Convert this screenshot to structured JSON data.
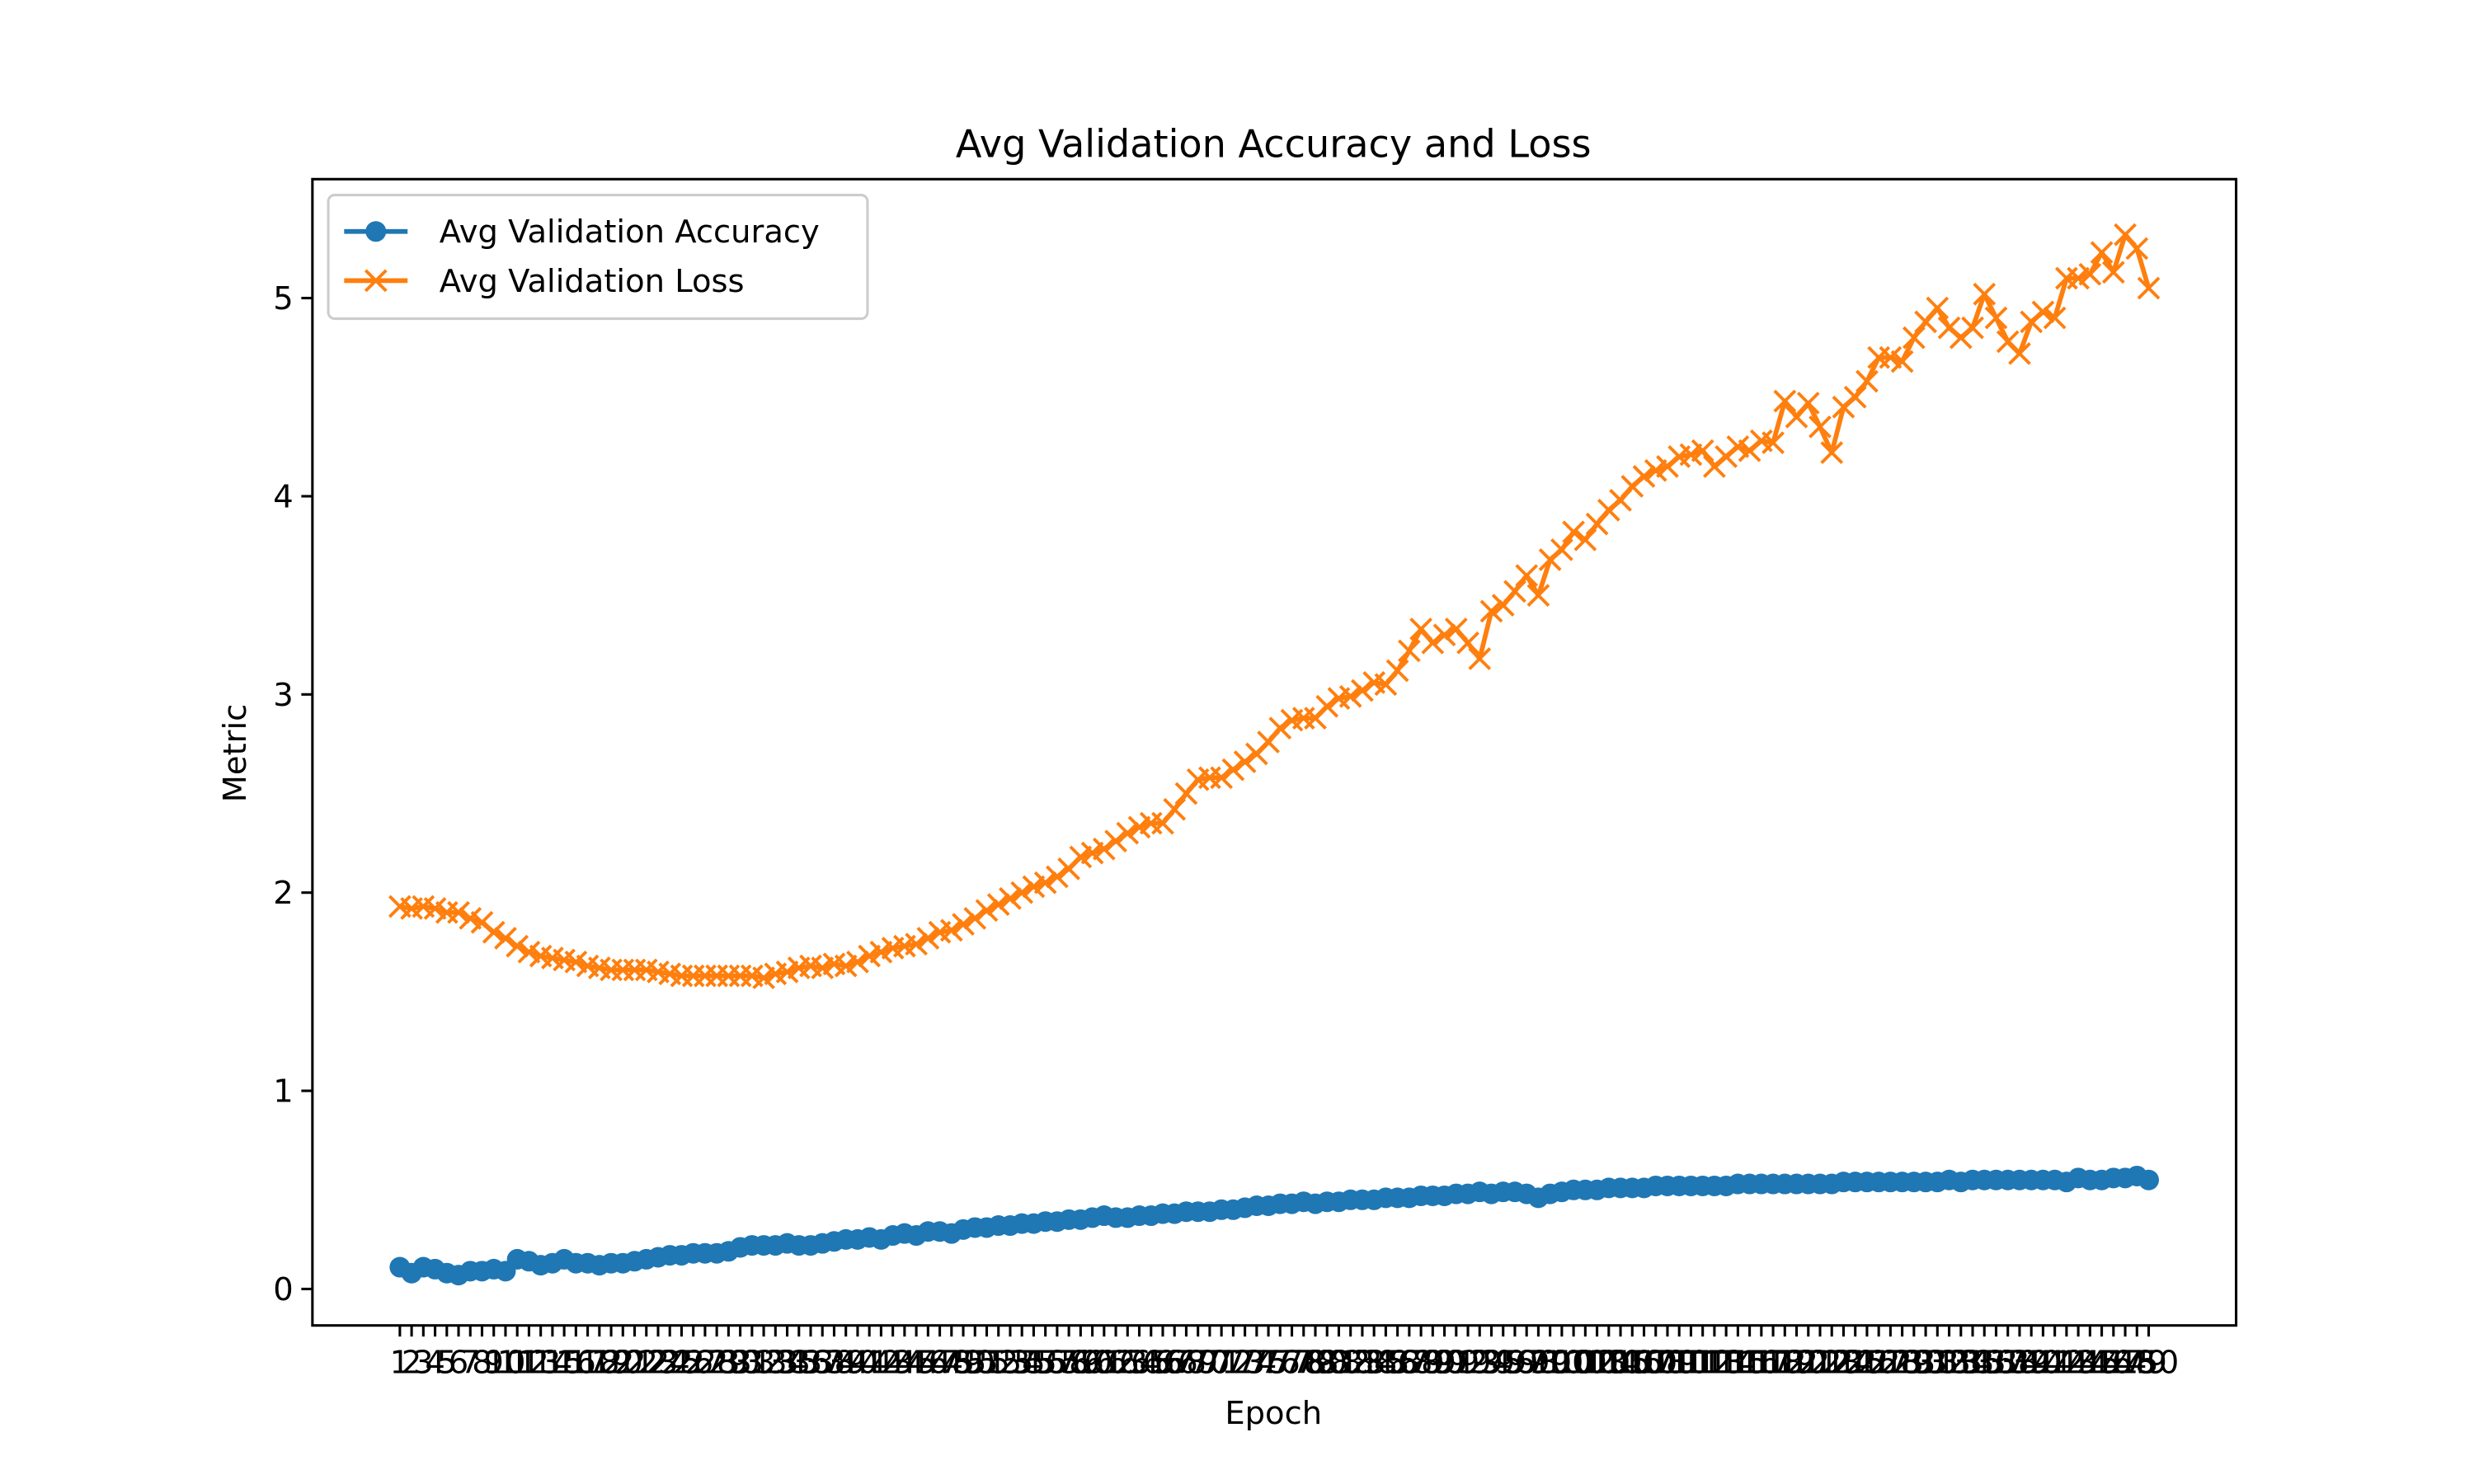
{
  "chart_data": {
    "type": "line",
    "title": "Avg Validation Accuracy and Loss",
    "xlabel": "Epoch",
    "ylabel": "Metric",
    "x": [
      1,
      2,
      3,
      4,
      5,
      6,
      7,
      8,
      9,
      10,
      11,
      12,
      13,
      14,
      15,
      16,
      17,
      18,
      19,
      20,
      21,
      22,
      23,
      24,
      25,
      26,
      27,
      28,
      29,
      30,
      31,
      32,
      33,
      34,
      35,
      36,
      37,
      38,
      39,
      40,
      41,
      42,
      43,
      44,
      45,
      46,
      47,
      48,
      49,
      50,
      51,
      52,
      53,
      54,
      55,
      56,
      57,
      58,
      59,
      60,
      61,
      62,
      63,
      64,
      65,
      66,
      67,
      68,
      69,
      70,
      71,
      72,
      73,
      74,
      75,
      76,
      77,
      78,
      79,
      80,
      81,
      82,
      83,
      84,
      85,
      86,
      87,
      88,
      89,
      90,
      91,
      92,
      93,
      94,
      95,
      96,
      97,
      98,
      99,
      100,
      101,
      102,
      103,
      104,
      105,
      106,
      107,
      108,
      109,
      110,
      111,
      112,
      113,
      114,
      115,
      116,
      117,
      118,
      119,
      120,
      121,
      122,
      123,
      124,
      125,
      126,
      127,
      128,
      129,
      130,
      131,
      132,
      133,
      134,
      135,
      136,
      137,
      138,
      139,
      140,
      141,
      142,
      143,
      144,
      145,
      146,
      147,
      148,
      149,
      150
    ],
    "series": [
      {
        "name": "Avg Validation Accuracy",
        "color": "#1f77b4",
        "marker": "o",
        "values": [
          0.11,
          0.08,
          0.11,
          0.1,
          0.08,
          0.07,
          0.09,
          0.09,
          0.1,
          0.09,
          0.15,
          0.14,
          0.12,
          0.13,
          0.15,
          0.13,
          0.13,
          0.12,
          0.13,
          0.13,
          0.14,
          0.15,
          0.16,
          0.17,
          0.17,
          0.18,
          0.18,
          0.18,
          0.19,
          0.21,
          0.22,
          0.22,
          0.22,
          0.23,
          0.22,
          0.22,
          0.23,
          0.24,
          0.25,
          0.25,
          0.26,
          0.25,
          0.27,
          0.28,
          0.27,
          0.29,
          0.29,
          0.28,
          0.3,
          0.31,
          0.31,
          0.32,
          0.32,
          0.33,
          0.33,
          0.34,
          0.34,
          0.35,
          0.35,
          0.36,
          0.37,
          0.36,
          0.36,
          0.37,
          0.37,
          0.38,
          0.38,
          0.39,
          0.39,
          0.39,
          0.4,
          0.4,
          0.41,
          0.42,
          0.42,
          0.43,
          0.43,
          0.44,
          0.43,
          0.44,
          0.44,
          0.45,
          0.45,
          0.45,
          0.46,
          0.46,
          0.46,
          0.47,
          0.47,
          0.47,
          0.48,
          0.48,
          0.49,
          0.48,
          0.49,
          0.49,
          0.48,
          0.46,
          0.48,
          0.49,
          0.5,
          0.5,
          0.5,
          0.51,
          0.51,
          0.51,
          0.51,
          0.52,
          0.52,
          0.52,
          0.52,
          0.52,
          0.52,
          0.52,
          0.53,
          0.53,
          0.53,
          0.53,
          0.53,
          0.53,
          0.53,
          0.53,
          0.53,
          0.54,
          0.54,
          0.54,
          0.54,
          0.54,
          0.54,
          0.54,
          0.54,
          0.54,
          0.55,
          0.54,
          0.55,
          0.55,
          0.55,
          0.55,
          0.55,
          0.55,
          0.55,
          0.55,
          0.54,
          0.56,
          0.55,
          0.55,
          0.56,
          0.56,
          0.57,
          0.55
        ]
      },
      {
        "name": "Avg Validation Loss",
        "color": "#ff7f0e",
        "marker": "x",
        "values": [
          1.93,
          1.92,
          1.93,
          1.92,
          1.9,
          1.9,
          1.87,
          1.85,
          1.8,
          1.77,
          1.73,
          1.7,
          1.68,
          1.67,
          1.66,
          1.65,
          1.63,
          1.62,
          1.61,
          1.61,
          1.61,
          1.61,
          1.6,
          1.59,
          1.58,
          1.58,
          1.58,
          1.58,
          1.58,
          1.58,
          1.58,
          1.57,
          1.59,
          1.6,
          1.62,
          1.63,
          1.62,
          1.64,
          1.63,
          1.65,
          1.68,
          1.7,
          1.72,
          1.73,
          1.74,
          1.77,
          1.8,
          1.81,
          1.84,
          1.87,
          1.91,
          1.94,
          1.97,
          2.0,
          2.03,
          2.05,
          2.08,
          2.12,
          2.18,
          2.2,
          2.22,
          2.26,
          2.3,
          2.33,
          2.35,
          2.35,
          2.42,
          2.5,
          2.57,
          2.58,
          2.58,
          2.62,
          2.66,
          2.7,
          2.76,
          2.83,
          2.87,
          2.88,
          2.88,
          2.94,
          2.98,
          2.99,
          3.02,
          3.06,
          3.05,
          3.12,
          3.22,
          3.33,
          3.26,
          3.3,
          3.33,
          3.26,
          3.18,
          3.42,
          3.45,
          3.52,
          3.6,
          3.5,
          3.68,
          3.73,
          3.82,
          3.78,
          3.86,
          3.93,
          3.98,
          4.05,
          4.1,
          4.13,
          4.15,
          4.2,
          4.21,
          4.23,
          4.15,
          4.2,
          4.25,
          4.23,
          4.28,
          4.27,
          4.48,
          4.4,
          4.47,
          4.35,
          4.22,
          4.45,
          4.5,
          4.58,
          4.7,
          4.7,
          4.68,
          4.8,
          4.88,
          4.95,
          4.85,
          4.8,
          4.85,
          5.02,
          4.9,
          4.78,
          4.72,
          4.88,
          4.93,
          4.9,
          5.1,
          5.1,
          5.12,
          5.23,
          5.13,
          5.32,
          5.25,
          5.05
        ]
      }
    ],
    "xlim": [
      -6.45,
      157.45
    ],
    "xticks": [
      1,
      2,
      3,
      4,
      5,
      6,
      7,
      8,
      9,
      10,
      11,
      12,
      13,
      14,
      15,
      16,
      17,
      18,
      19,
      20,
      21,
      22,
      23,
      24,
      25,
      26,
      27,
      28,
      29,
      30,
      31,
      32,
      33,
      34,
      35,
      36,
      37,
      38,
      39,
      40,
      41,
      42,
      43,
      44,
      45,
      46,
      47,
      48,
      49,
      50,
      51,
      52,
      53,
      54,
      55,
      56,
      57,
      58,
      59,
      60,
      61,
      62,
      63,
      64,
      65,
      66,
      67,
      68,
      69,
      70,
      71,
      72,
      73,
      74,
      75,
      76,
      77,
      78,
      79,
      80,
      81,
      82,
      83,
      84,
      85,
      86,
      87,
      88,
      89,
      90,
      91,
      92,
      93,
      94,
      95,
      96,
      97,
      98,
      99,
      100,
      101,
      102,
      103,
      104,
      105,
      106,
      107,
      108,
      109,
      110,
      111,
      112,
      113,
      114,
      115,
      116,
      117,
      118,
      119,
      120,
      121,
      122,
      123,
      124,
      125,
      126,
      127,
      128,
      129,
      130,
      131,
      132,
      133,
      134,
      135,
      136,
      137,
      138,
      139,
      140,
      141,
      142,
      143,
      144,
      145,
      146,
      147,
      148,
      149,
      150
    ],
    "ylim": [
      -0.184,
      5.6
    ],
    "yticks": [
      0,
      1,
      2,
      3,
      4,
      5
    ],
    "grid": false,
    "legend": "upper left"
  }
}
